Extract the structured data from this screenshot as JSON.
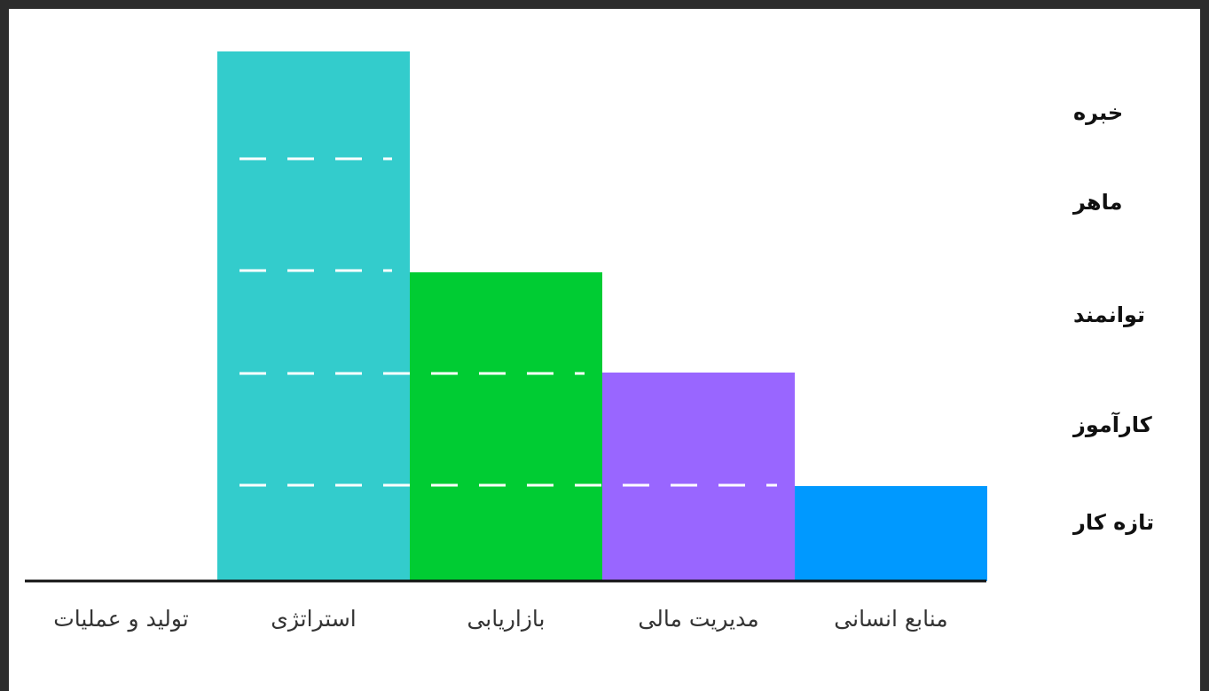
{
  "chart_data": {
    "type": "bar",
    "categories": [
      "تولید و عملیات",
      "استراتژی",
      "بازاریابی",
      "مدیریت مالی",
      "منابع انسانی"
    ],
    "values": [
      0,
      5,
      3,
      2,
      1
    ],
    "colors": [
      "#ffffff",
      "#33cccc",
      "#00cc33",
      "#9966ff",
      "#0099ff"
    ],
    "levels": [
      "تازه کار",
      "کارآموز",
      "توانمند",
      "ماهر",
      "خبره"
    ],
    "ylim": [
      0,
      5
    ],
    "grid": "dashed-white-inside-bars",
    "title": "",
    "xlabel": "",
    "ylabel": ""
  }
}
